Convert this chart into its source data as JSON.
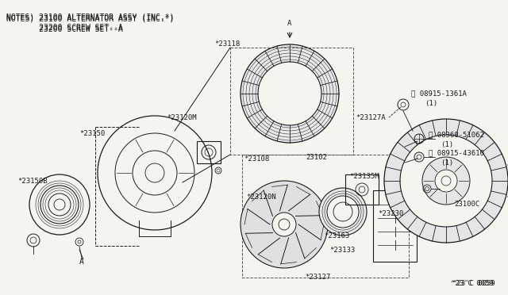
{
  "bg_color": "#f5f5f0",
  "line_color": "#1a1a1a",
  "notes_line1": "NOTES) 23100 ALTERNATOR ASSY (INC.*)",
  "notes_line2": "       23200 SCREW SET--A",
  "diagram_ref": "^23'C 0059",
  "font_size_notes": 7.0,
  "font_size_label": 6.5,
  "font_size_ref": 6.5
}
